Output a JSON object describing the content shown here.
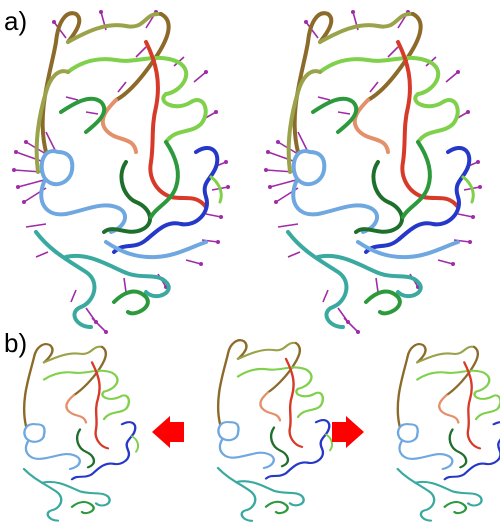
{
  "panels": {
    "a": {
      "label": "a)"
    },
    "b": {
      "label": "b)"
    }
  },
  "colors": {
    "brown": "#8b6a2a",
    "olive": "#9aa34a",
    "light-green": "#7fd04a",
    "green": "#2c9a3c",
    "dark-green": "#1f6f2c",
    "teal": "#3aa9a0",
    "light-blue": "#6fa8e0",
    "blue": "#2538c8",
    "red": "#d83a2a",
    "salmon": "#e4906a",
    "magenta": "#a02aa8",
    "arrow-red": "#ff0000"
  },
  "icons": [
    "arrow-left-icon",
    "arrow-right-icon"
  ]
}
